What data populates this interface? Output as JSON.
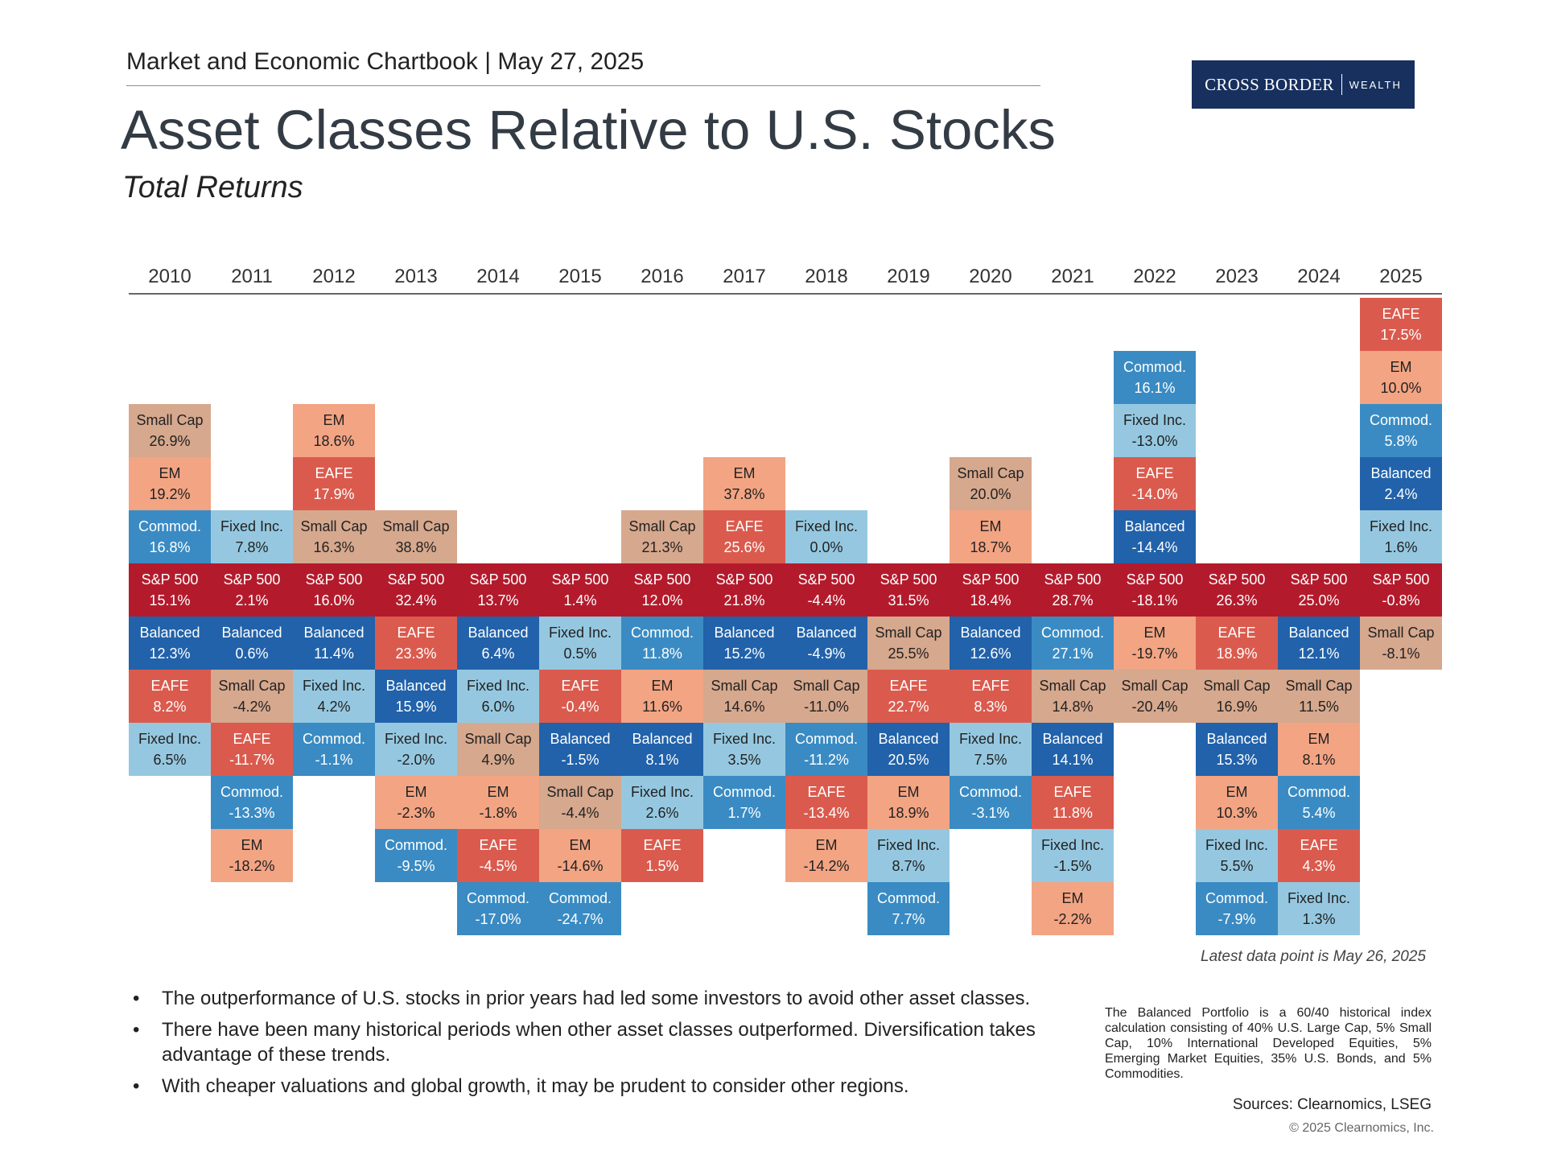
{
  "header": {
    "chartbook": "Market and Economic Chartbook | May 27, 2025",
    "title": "Asset Classes Relative to U.S. Stocks",
    "subtitle": "Total Returns"
  },
  "logo": {
    "left": "CROSS BORDER",
    "right": "WEALTH"
  },
  "colors": {
    "S&P 500": "#b31b2c",
    "Balanced": "#2162aa",
    "Fixed Inc.": "#95c8e0",
    "Commod.": "#3a8bc3",
    "Small Cap": "#d6a88d",
    "EM": "#f2a483",
    "EAFE": "#da5b4e"
  },
  "chart_data": {
    "type": "table",
    "title": "Asset Classes Relative to U.S. Stocks",
    "subtitle": "Total Returns",
    "baseline": "S&P 500",
    "years": [
      "2010",
      "2011",
      "2012",
      "2013",
      "2014",
      "2015",
      "2016",
      "2017",
      "2018",
      "2019",
      "2020",
      "2021",
      "2022",
      "2023",
      "2024",
      "2025"
    ],
    "columns": [
      {
        "year": "2010",
        "above": [
          {
            "name": "Small Cap",
            "value": "26.9%"
          },
          {
            "name": "EM",
            "value": "19.2%"
          },
          {
            "name": "Commod.",
            "value": "16.8%"
          }
        ],
        "sp500": "15.1%",
        "below": [
          {
            "name": "Balanced",
            "value": "12.3%"
          },
          {
            "name": "EAFE",
            "value": "8.2%"
          },
          {
            "name": "Fixed Inc.",
            "value": "6.5%"
          }
        ]
      },
      {
        "year": "2011",
        "above": [
          {
            "name": "Fixed Inc.",
            "value": "7.8%"
          }
        ],
        "sp500": "2.1%",
        "below": [
          {
            "name": "Balanced",
            "value": "0.6%"
          },
          {
            "name": "Small Cap",
            "value": "-4.2%"
          },
          {
            "name": "EAFE",
            "value": "-11.7%"
          },
          {
            "name": "Commod.",
            "value": "-13.3%"
          },
          {
            "name": "EM",
            "value": "-18.2%"
          }
        ]
      },
      {
        "year": "2012",
        "above": [
          {
            "name": "EM",
            "value": "18.6%"
          },
          {
            "name": "EAFE",
            "value": "17.9%"
          },
          {
            "name": "Small Cap",
            "value": "16.3%"
          }
        ],
        "sp500": "16.0%",
        "below": [
          {
            "name": "Balanced",
            "value": "11.4%"
          },
          {
            "name": "Fixed Inc.",
            "value": "4.2%"
          },
          {
            "name": "Commod.",
            "value": "-1.1%"
          }
        ]
      },
      {
        "year": "2013",
        "above": [
          {
            "name": "Small Cap",
            "value": "38.8%"
          }
        ],
        "sp500": "32.4%",
        "below": [
          {
            "name": "EAFE",
            "value": "23.3%"
          },
          {
            "name": "Balanced",
            "value": "15.9%"
          },
          {
            "name": "Fixed Inc.",
            "value": "-2.0%"
          },
          {
            "name": "EM",
            "value": "-2.3%"
          },
          {
            "name": "Commod.",
            "value": "-9.5%"
          }
        ]
      },
      {
        "year": "2014",
        "above": [],
        "sp500": "13.7%",
        "below": [
          {
            "name": "Balanced",
            "value": "6.4%"
          },
          {
            "name": "Fixed Inc.",
            "value": "6.0%"
          },
          {
            "name": "Small Cap",
            "value": "4.9%"
          },
          {
            "name": "EM",
            "value": "-1.8%"
          },
          {
            "name": "EAFE",
            "value": "-4.5%"
          },
          {
            "name": "Commod.",
            "value": "-17.0%"
          }
        ]
      },
      {
        "year": "2015",
        "above": [],
        "sp500": "1.4%",
        "below": [
          {
            "name": "Fixed Inc.",
            "value": "0.5%"
          },
          {
            "name": "EAFE",
            "value": "-0.4%"
          },
          {
            "name": "Balanced",
            "value": "-1.5%"
          },
          {
            "name": "Small Cap",
            "value": "-4.4%"
          },
          {
            "name": "EM",
            "value": "-14.6%"
          },
          {
            "name": "Commod.",
            "value": "-24.7%"
          }
        ]
      },
      {
        "year": "2016",
        "above": [
          {
            "name": "Small Cap",
            "value": "21.3%"
          }
        ],
        "sp500": "12.0%",
        "below": [
          {
            "name": "Commod.",
            "value": "11.8%"
          },
          {
            "name": "EM",
            "value": "11.6%"
          },
          {
            "name": "Balanced",
            "value": "8.1%"
          },
          {
            "name": "Fixed Inc.",
            "value": "2.6%"
          },
          {
            "name": "EAFE",
            "value": "1.5%"
          }
        ]
      },
      {
        "year": "2017",
        "above": [
          {
            "name": "EM",
            "value": "37.8%"
          },
          {
            "name": "EAFE",
            "value": "25.6%"
          }
        ],
        "sp500": "21.8%",
        "below": [
          {
            "name": "Balanced",
            "value": "15.2%"
          },
          {
            "name": "Small Cap",
            "value": "14.6%"
          },
          {
            "name": "Fixed Inc.",
            "value": "3.5%"
          },
          {
            "name": "Commod.",
            "value": "1.7%"
          }
        ]
      },
      {
        "year": "2018",
        "above": [
          {
            "name": "Fixed Inc.",
            "value": "0.0%"
          }
        ],
        "sp500": "-4.4%",
        "below": [
          {
            "name": "Balanced",
            "value": "-4.9%"
          },
          {
            "name": "Small Cap",
            "value": "-11.0%"
          },
          {
            "name": "Commod.",
            "value": "-11.2%"
          },
          {
            "name": "EAFE",
            "value": "-13.4%"
          },
          {
            "name": "EM",
            "value": "-14.2%"
          }
        ]
      },
      {
        "year": "2019",
        "above": [],
        "sp500": "31.5%",
        "below": [
          {
            "name": "Small Cap",
            "value": "25.5%"
          },
          {
            "name": "EAFE",
            "value": "22.7%"
          },
          {
            "name": "Balanced",
            "value": "20.5%"
          },
          {
            "name": "EM",
            "value": "18.9%"
          },
          {
            "name": "Fixed Inc.",
            "value": "8.7%"
          },
          {
            "name": "Commod.",
            "value": "7.7%"
          }
        ]
      },
      {
        "year": "2020",
        "above": [
          {
            "name": "Small Cap",
            "value": "20.0%"
          },
          {
            "name": "EM",
            "value": "18.7%"
          }
        ],
        "sp500": "18.4%",
        "below": [
          {
            "name": "Balanced",
            "value": "12.6%"
          },
          {
            "name": "EAFE",
            "value": "8.3%"
          },
          {
            "name": "Fixed Inc.",
            "value": "7.5%"
          },
          {
            "name": "Commod.",
            "value": "-3.1%"
          }
        ]
      },
      {
        "year": "2021",
        "above": [],
        "sp500": "28.7%",
        "below": [
          {
            "name": "Commod.",
            "value": "27.1%"
          },
          {
            "name": "Small Cap",
            "value": "14.8%"
          },
          {
            "name": "Balanced",
            "value": "14.1%"
          },
          {
            "name": "EAFE",
            "value": "11.8%"
          },
          {
            "name": "Fixed Inc.",
            "value": "-1.5%"
          },
          {
            "name": "EM",
            "value": "-2.2%"
          }
        ]
      },
      {
        "year": "2022",
        "above": [
          {
            "name": "Commod.",
            "value": "16.1%"
          },
          {
            "name": "Fixed Inc.",
            "value": "-13.0%"
          },
          {
            "name": "EAFE",
            "value": "-14.0%"
          },
          {
            "name": "Balanced",
            "value": "-14.4%"
          }
        ],
        "sp500": "-18.1%",
        "below": [
          {
            "name": "EM",
            "value": "-19.7%"
          },
          {
            "name": "Small Cap",
            "value": "-20.4%"
          }
        ]
      },
      {
        "year": "2023",
        "above": [],
        "sp500": "26.3%",
        "below": [
          {
            "name": "EAFE",
            "value": "18.9%"
          },
          {
            "name": "Small Cap",
            "value": "16.9%"
          },
          {
            "name": "Balanced",
            "value": "15.3%"
          },
          {
            "name": "EM",
            "value": "10.3%"
          },
          {
            "name": "Fixed Inc.",
            "value": "5.5%"
          },
          {
            "name": "Commod.",
            "value": "-7.9%"
          }
        ]
      },
      {
        "year": "2024",
        "above": [],
        "sp500": "25.0%",
        "below": [
          {
            "name": "Balanced",
            "value": "12.1%"
          },
          {
            "name": "Small Cap",
            "value": "11.5%"
          },
          {
            "name": "EM",
            "value": "8.1%"
          },
          {
            "name": "Commod.",
            "value": "5.4%"
          },
          {
            "name": "EAFE",
            "value": "4.3%"
          },
          {
            "name": "Fixed Inc.",
            "value": "1.3%"
          }
        ]
      },
      {
        "year": "2025",
        "above": [
          {
            "name": "EAFE",
            "value": "17.5%"
          },
          {
            "name": "EM",
            "value": "10.0%"
          },
          {
            "name": "Commod.",
            "value": "5.8%"
          },
          {
            "name": "Balanced",
            "value": "2.4%"
          },
          {
            "name": "Fixed Inc.",
            "value": "1.6%"
          }
        ],
        "sp500": "-0.8%",
        "below": [
          {
            "name": "Small Cap",
            "value": "-8.1%"
          }
        ]
      }
    ]
  },
  "latest_data": "Latest data point is May 26, 2025",
  "bullets": [
    "The outperformance of U.S. stocks in prior years had led some investors to avoid other asset classes.",
    "There have been many historical periods when other asset classes outperformed. Diversification takes advantage of these trends.",
    "With cheaper valuations and global growth, it may be prudent to consider other regions."
  ],
  "note": "The Balanced Portfolio is a 60/40 historical index calculation consisting of 40% U.S. Large Cap, 5% Small Cap, 10% International Developed Equities, 5% Emerging Market Equities, 35% U.S. Bonds, and 5% Commodities.",
  "sources": "Sources: Clearnomics, LSEG",
  "copyright": "© 2025 Clearnomics, Inc."
}
